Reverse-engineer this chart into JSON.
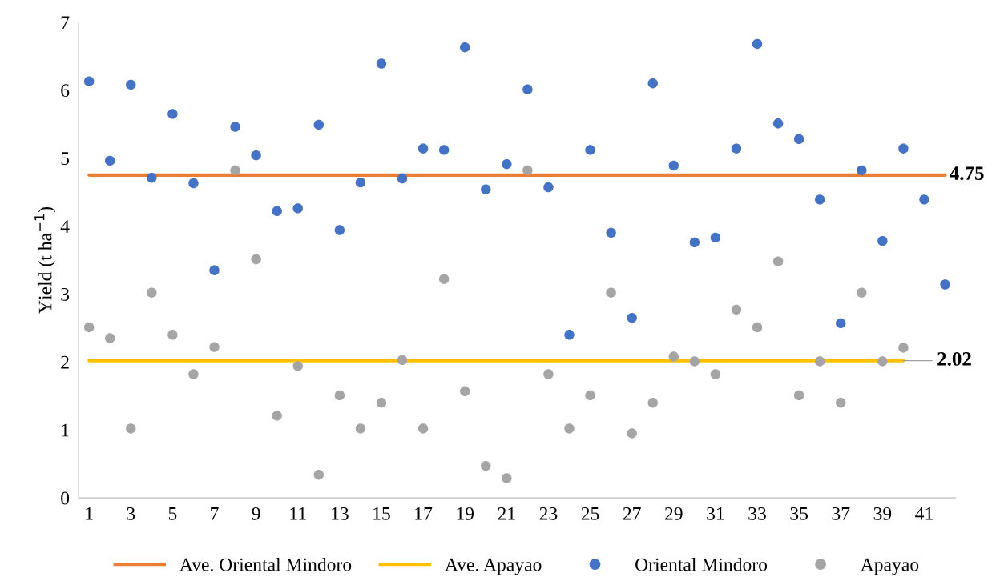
{
  "chart_data": {
    "type": "scatter",
    "ylabel": "Yield (t ha$^{−1}$)",
    "xlim": [
      0.5,
      42.5
    ],
    "xticks": [
      1,
      3,
      5,
      7,
      9,
      11,
      13,
      15,
      17,
      19,
      21,
      23,
      25,
      27,
      29,
      31,
      33,
      35,
      37,
      39,
      41
    ],
    "ylim": [
      0,
      7
    ],
    "yticks": [
      0,
      1,
      2,
      3,
      4,
      5,
      6,
      7
    ],
    "grid": false,
    "legend": "bottom",
    "marker": "circle",
    "series": [
      {
        "name": "Ave. Oriental Mindoro",
        "type": "line",
        "marker": "none",
        "color": "#ed7d31",
        "x": [
          1,
          42
        ],
        "values": [
          4.75,
          4.75
        ]
      },
      {
        "name": "Ave. Apayao",
        "type": "line",
        "marker": "none",
        "color": "#ffc000",
        "x": [
          1,
          40
        ],
        "values": [
          2.02,
          2.02
        ]
      },
      {
        "name": "Oriental Mindoro",
        "color": "#4472c4",
        "x": [
          1,
          2,
          3,
          4,
          5,
          6,
          7,
          8,
          9,
          10,
          11,
          12,
          13,
          14,
          15,
          16,
          17,
          18,
          19,
          20,
          21,
          22,
          23,
          24,
          25,
          26,
          27,
          28,
          29,
          30,
          31,
          32,
          33,
          34,
          35,
          36,
          37,
          38,
          39,
          40,
          41,
          42
        ],
        "values": [
          6.13,
          4.96,
          6.08,
          4.71,
          5.65,
          4.63,
          3.35,
          5.46,
          5.04,
          4.22,
          4.26,
          5.49,
          3.94,
          4.64,
          6.39,
          4.7,
          5.14,
          5.12,
          6.63,
          4.54,
          4.91,
          6.01,
          4.57,
          2.4,
          5.12,
          3.9,
          2.65,
          6.1,
          4.89,
          3.76,
          3.83,
          5.14,
          6.68,
          5.51,
          5.28,
          4.39,
          2.57,
          4.82,
          3.78,
          5.14,
          4.39,
          3.14
        ]
      },
      {
        "name": "Apayao",
        "color": "#a5a5a5",
        "x": [
          1,
          2,
          3,
          4,
          5,
          6,
          7,
          8,
          9,
          10,
          11,
          12,
          13,
          14,
          15,
          16,
          17,
          18,
          19,
          20,
          21,
          22,
          23,
          24,
          25,
          26,
          27,
          28,
          29,
          30,
          31,
          32,
          33,
          34,
          35,
          36,
          37,
          38,
          39,
          40
        ],
        "values": [
          2.51,
          2.35,
          1.02,
          3.02,
          2.4,
          1.82,
          2.22,
          4.82,
          3.51,
          1.21,
          1.94,
          0.34,
          1.51,
          1.02,
          1.4,
          2.03,
          1.02,
          3.22,
          1.57,
          0.47,
          0.29,
          4.82,
          1.82,
          1.02,
          1.51,
          3.02,
          0.95,
          1.4,
          2.08,
          2.01,
          1.82,
          2.77,
          2.51,
          3.48,
          1.51,
          2.01,
          1.4,
          3.02,
          2.01,
          2.21
        ]
      }
    ],
    "annotations": [
      {
        "text": "4.75",
        "x": 42,
        "y": 4.75
      },
      {
        "text": "2.02",
        "x": 40,
        "y": 2.02
      }
    ]
  }
}
